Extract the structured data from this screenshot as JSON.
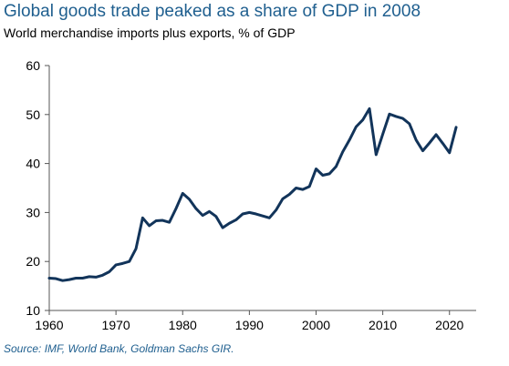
{
  "chart_data": {
    "type": "line",
    "title": "Global goods trade peaked as a share of GDP in 2008",
    "subtitle": "World merchandise imports plus exports, % of GDP",
    "source": "Source: IMF, World Bank, Goldman Sachs GIR.",
    "xlabel": "",
    "ylabel": "",
    "xlim": [
      1960,
      2024
    ],
    "ylim": [
      10,
      60
    ],
    "x_ticks": [
      1960,
      1970,
      1980,
      1990,
      2000,
      2010,
      2020
    ],
    "y_ticks": [
      10,
      20,
      30,
      40,
      50,
      60
    ],
    "grid": false,
    "line_color": "#12345a",
    "series": [
      {
        "x": [
          1960,
          1961,
          1962,
          1963,
          1964,
          1965,
          1966,
          1967,
          1968,
          1969,
          1970,
          1971,
          1972,
          1973,
          1974,
          1975,
          1976,
          1977,
          1978,
          1979,
          1980,
          1981,
          1982,
          1983,
          1984,
          1985,
          1986,
          1987,
          1988,
          1989,
          1990,
          1991,
          1992,
          1993,
          1994,
          1995,
          1996,
          1997,
          1998,
          1999,
          2000,
          2001,
          2002,
          2003,
          2004,
          2005,
          2006,
          2007,
          2008,
          2009,
          2010,
          2011,
          2012,
          2013,
          2014,
          2015,
          2016,
          2017,
          2018,
          2019,
          2020,
          2021
        ],
        "values": [
          16.6,
          16.5,
          16.1,
          16.3,
          16.6,
          16.6,
          16.9,
          16.8,
          17.2,
          17.9,
          19.3,
          19.6,
          20.0,
          22.6,
          28.9,
          27.3,
          28.3,
          28.4,
          28.0,
          30.8,
          33.9,
          32.7,
          30.8,
          29.4,
          30.2,
          29.2,
          26.9,
          27.8,
          28.5,
          29.7,
          30.0,
          29.7,
          29.3,
          28.9,
          30.5,
          32.8,
          33.7,
          35.0,
          34.7,
          35.3,
          38.9,
          37.6,
          37.9,
          39.4,
          42.4,
          44.8,
          47.5,
          48.9,
          51.2,
          41.8,
          46.0,
          50.1,
          49.6,
          49.2,
          48.1,
          44.8,
          42.6,
          44.2,
          45.9,
          44.1,
          42.2,
          47.4
        ]
      }
    ]
  }
}
